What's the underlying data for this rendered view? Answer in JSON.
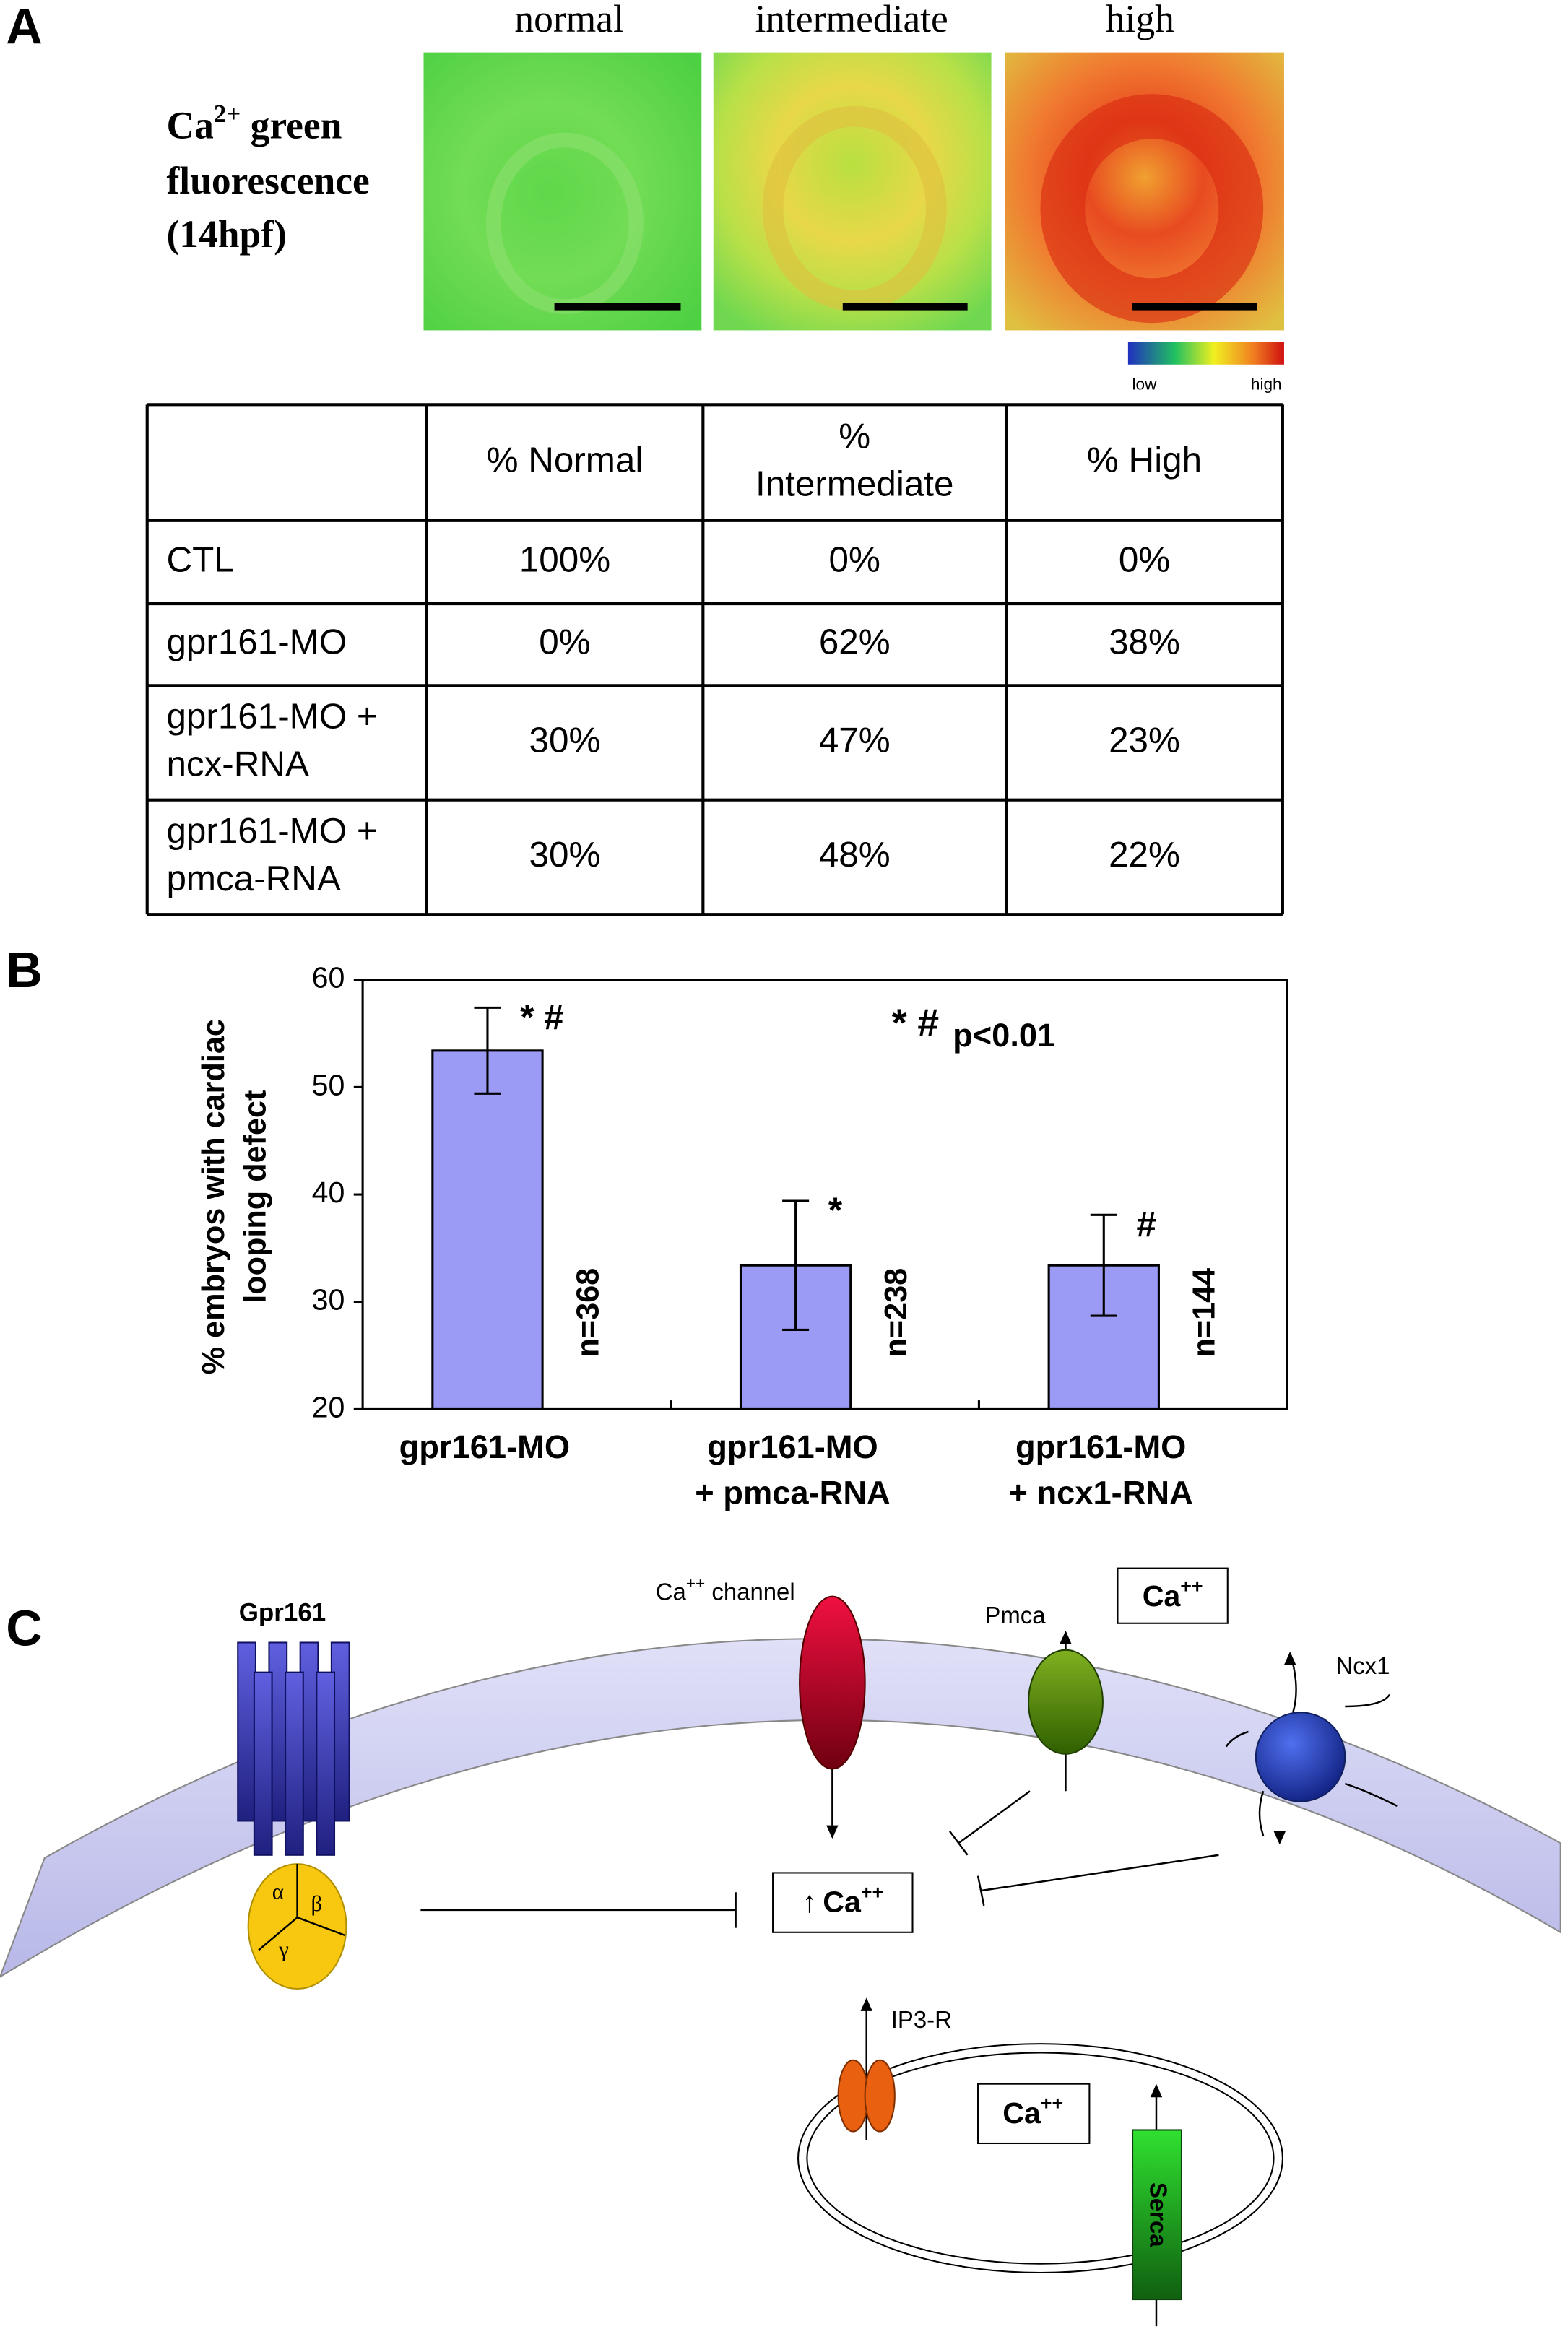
{
  "panels": {
    "a": "A",
    "b": "B",
    "c": "C"
  },
  "panel_a": {
    "image_titles": [
      "normal",
      "intermediate",
      "high"
    ],
    "ca_label": {
      "base": "Ca",
      "sup": "2+",
      "rest": " green",
      "lines": [
        "fluorescence",
        "(14hpf)"
      ]
    },
    "colorbar": {
      "low": "low",
      "high": "high"
    }
  },
  "table": {
    "columns": [
      [
        "% Normal"
      ],
      [
        "%",
        "Intermediate"
      ],
      [
        "% High"
      ]
    ],
    "rows": [
      {
        "label": [
          "CTL"
        ],
        "cells": [
          "100%",
          "0%",
          "0%"
        ]
      },
      {
        "label": [
          "gpr161-MO"
        ],
        "cells": [
          "0%",
          "62%",
          "38%"
        ]
      },
      {
        "label": [
          "gpr161-MO +",
          "ncx-RNA"
        ],
        "cells": [
          "30%",
          "47%",
          "23%"
        ]
      },
      {
        "label": [
          "gpr161-MO +",
          "pmca-RNA"
        ],
        "cells": [
          "30%",
          "48%",
          "22%"
        ]
      }
    ]
  },
  "chart_data": {
    "type": "bar",
    "y_label": [
      "% embryos with cardiac",
      "looping defect"
    ],
    "categories": [
      [
        "gpr161-MO"
      ],
      [
        "gpr161-MO",
        "+ pmca-RNA"
      ],
      [
        "gpr161-MO",
        "+ ncx1-RNA"
      ]
    ],
    "values": [
      53.4,
      33.4,
      33.4
    ],
    "errors": [
      4,
      6,
      4.7
    ],
    "color": "#9b9bf5",
    "ylim": [
      20,
      60
    ],
    "yticks": [
      20,
      30,
      40,
      50,
      60
    ],
    "marks": [
      "* #",
      "*",
      "#"
    ],
    "n_labels": [
      "n=368",
      "n=238",
      "n=144"
    ],
    "note_symbols": "* #",
    "note_text": "p<0.01"
  },
  "diagram": {
    "gpr161": "Gpr161",
    "subunits": [
      "α",
      "β",
      "γ"
    ],
    "channel": {
      "base": "Ca",
      "sup": "++",
      "rest": " channel"
    },
    "pmca": "Pmca",
    "ncx1": "Ncx1",
    "outer_ca": {
      "base": "Ca",
      "sup": "++"
    },
    "center_ca": {
      "arrow": "↑",
      "base": "Ca",
      "sup": "++"
    },
    "ip3r": "IP3-R",
    "er_ca": {
      "base": "Ca",
      "sup": "++"
    },
    "serca": "Serca"
  }
}
